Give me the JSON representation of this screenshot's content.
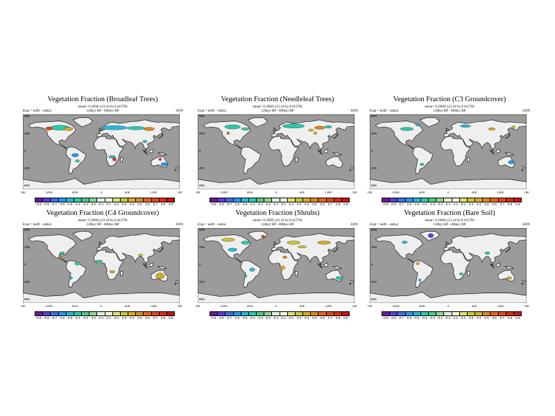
{
  "panels": [
    {
      "title": "Vegetation Fraction (Broadleaf Trees)",
      "sub1": "mean= 0.29603 (21.41%) 0.415794",
      "sub2": "120kyr BP - 000kyr BP",
      "expt": "Expt = tedf1 - tedla1",
      "ann": "ANN",
      "colorbar_labels": [
        "-0.9",
        "-0.8",
        "-0.7",
        "-0.6",
        "-0.5",
        "-0.4",
        "-0.3",
        "-0.2",
        "-0.1",
        "0.1",
        "0.2",
        "0.3",
        "0.4",
        "0.5",
        "0.6",
        "0.7",
        "0.8",
        "0.9"
      ]
    },
    {
      "title": "Vegetation Fraction (Needleleaf Trees)",
      "sub1": "mean= 0.29603 (21.41%) 0.415794",
      "sub2": "120kyr BP - 000kyr BP",
      "expt": "Expt = tedf1 - tedla1",
      "ann": "ANN",
      "colorbar_labels": [
        "-0.9",
        "-0.8",
        "-0.7",
        "-0.6",
        "-0.5",
        "-0.4",
        "-0.3",
        "-0.2",
        "-0.1",
        "0.1",
        "0.2",
        "0.3",
        "0.4",
        "0.5",
        "0.6",
        "0.7",
        "0.8",
        "0.9"
      ]
    },
    {
      "title": "Vegetation Fraction (C3 Groundcover)",
      "sub1": "mean= 0.29603 (21.41%) 0.415794",
      "sub2": "120kyr BP - 000kyr BP",
      "expt": "Expt = tedf1 - tedla1",
      "ann": "ANN",
      "colorbar_labels": [
        "-0.9",
        "-0.8",
        "-0.7",
        "-0.6",
        "-0.5",
        "-0.4",
        "-0.3",
        "-0.2",
        "-0.1",
        "0.1",
        "0.2",
        "0.3",
        "0.4",
        "0.5",
        "0.6",
        "0.7",
        "0.8",
        "0.9"
      ]
    },
    {
      "title": "Vegetation Fraction (C4 Groundcover)",
      "sub1": "mean= 0.29603 (21.41%) 0.415794",
      "sub2": "120kyr BP - 000kyr BP",
      "expt": "Expt = tedf1 - tedla1",
      "ann": "ANN",
      "colorbar_labels": [
        "-0.9",
        "-0.8",
        "-0.7",
        "-0.6",
        "-0.5",
        "-0.4",
        "-0.3",
        "-0.2",
        "-0.1",
        "0.1",
        "0.2",
        "0.3",
        "0.4",
        "0.5",
        "0.6",
        "0.7",
        "0.8",
        "0.9"
      ]
    },
    {
      "title": "Vegetation Fraction (Shrubs)",
      "sub1": "mean= 0.29603 (21.41%) 0.415794",
      "sub2": "120kyr BP - 000kyr BP",
      "expt": "Expt = tedf1 - tedla1",
      "ann": "ANN",
      "colorbar_labels": [
        "-0.9",
        "-0.8",
        "-0.7",
        "-0.6",
        "-0.5",
        "-0.4",
        "-0.3",
        "-0.2",
        "-0.1",
        "0.1",
        "0.2",
        "0.3",
        "0.4",
        "0.5",
        "0.6",
        "0.7",
        "0.8",
        "0.9"
      ]
    },
    {
      "title": "Vegetation Fraction (Bare Soil)",
      "sub1": "mean= 0.29603 (21.41%) 0.415794",
      "sub2": "120kyr BP - 000kyr BP",
      "expt": "Expt = tedf1 - tedla1",
      "ann": "ANN",
      "colorbar_labels": [
        "-0.9",
        "-0.8",
        "-0.7",
        "-0.6",
        "-0.5",
        "-0.4",
        "-0.3",
        "-0.2",
        "-0.1",
        "0.1",
        "0.2",
        "0.3",
        "0.4",
        "0.5",
        "0.6",
        "0.7",
        "0.8",
        "0.9"
      ]
    }
  ],
  "x_ticks": [
    "180",
    "120W",
    "60W",
    "0",
    "60E",
    "120E",
    "180"
  ],
  "y_ticks": [
    "80N",
    "40N",
    "0",
    "40S",
    "80S"
  ],
  "colors": {
    "ocean": "#9b9b9b",
    "land": "#efefef",
    "palette": [
      "#6a1b9a",
      "#5c3fcf",
      "#3f6ee0",
      "#2a97e8",
      "#27b8d8",
      "#2fc9a8",
      "#47c98a",
      "#8fd18d",
      "#d9f0d9",
      "#f3fbd0",
      "#d7e07a",
      "#c8c43a",
      "#d4ab2c",
      "#dc8a22",
      "#e2661c",
      "#e04a1a",
      "#d62e1a",
      "#c41616"
    ]
  }
}
